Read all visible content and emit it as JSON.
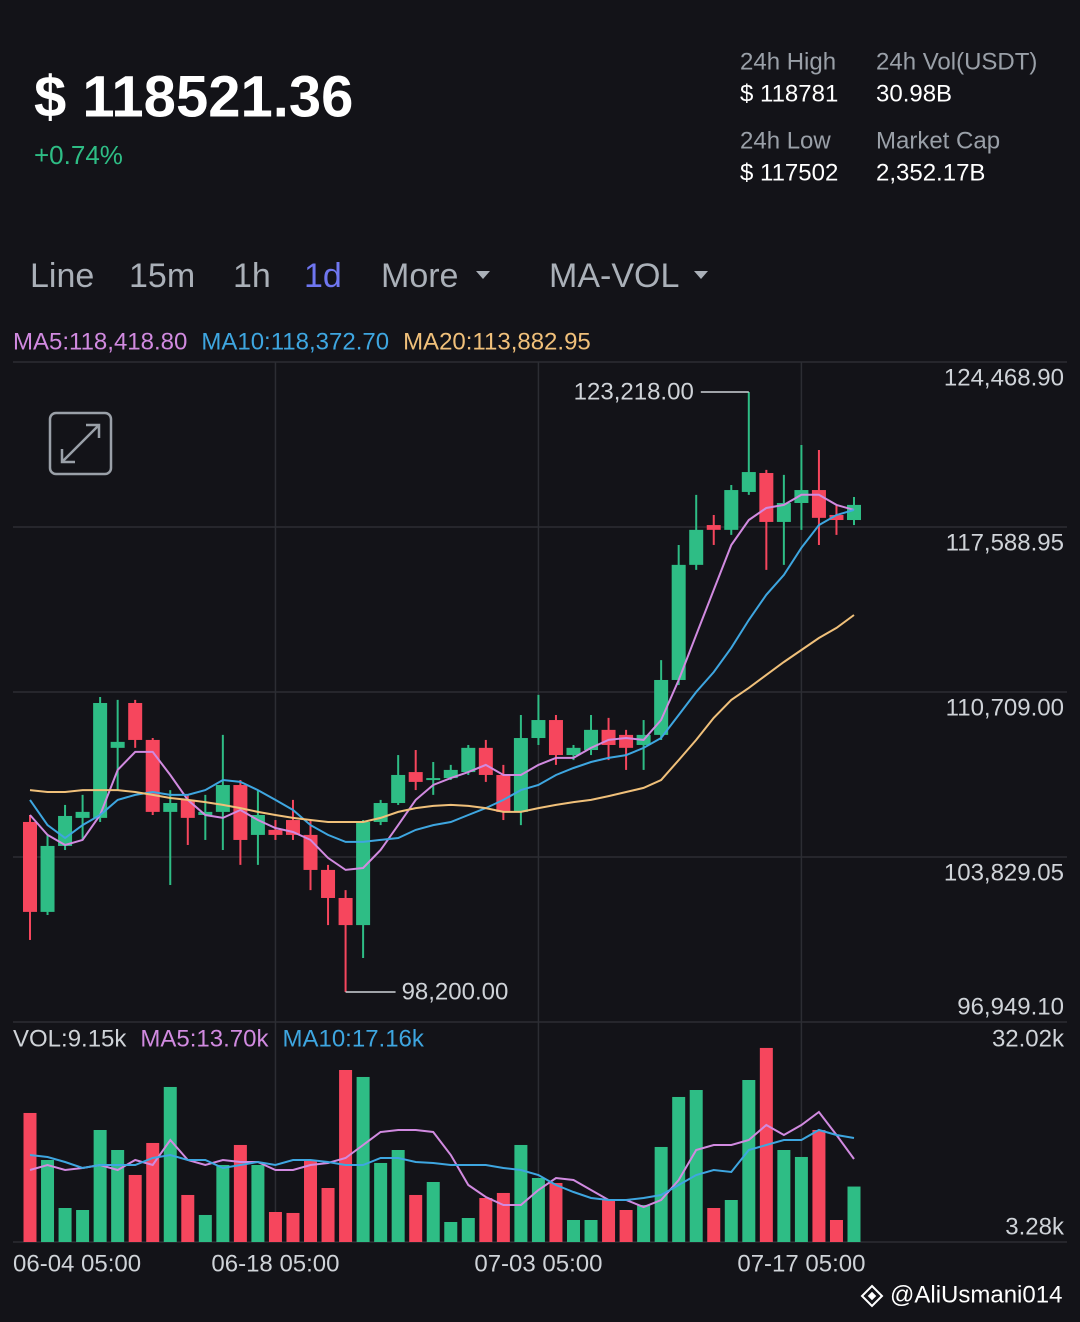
{
  "header": {
    "price": "$ 118521.36",
    "change": "+0.74%",
    "stats": [
      {
        "label": "24h High",
        "value": "$ 118781"
      },
      {
        "label": "24h Vol(USDT)",
        "value": "30.98B"
      },
      {
        "label": "24h Low",
        "value": "$ 117502"
      },
      {
        "label": "Market Cap",
        "value": "2,352.17B"
      }
    ]
  },
  "tabs": [
    {
      "label": "Line"
    },
    {
      "label": "15m"
    },
    {
      "label": "1h"
    },
    {
      "label": "1d",
      "active": true
    },
    {
      "label": "More"
    },
    {
      "label": "MA-VOL"
    }
  ],
  "watermark": "@AliUsmani014",
  "chart_data": [
    {
      "type": "candlestick",
      "categories": [
        "06-04 05:00",
        null,
        null,
        null,
        null,
        null,
        null,
        null,
        null,
        null,
        null,
        null,
        null,
        null,
        "06-18 05:00",
        null,
        null,
        null,
        null,
        null,
        null,
        null,
        null,
        null,
        null,
        null,
        null,
        null,
        null,
        "07-03 05:00",
        null,
        null,
        null,
        null,
        null,
        null,
        null,
        null,
        null,
        null,
        null,
        null,
        null,
        null,
        "07-17 05:00",
        null,
        null,
        null
      ],
      "open": [
        105290,
        101540,
        104290,
        105460,
        105460,
        108380,
        110250,
        108710,
        105710,
        106210,
        105580,
        105710,
        106830,
        104750,
        104960,
        105370,
        104750,
        103290,
        102120,
        100990,
        105290,
        106080,
        107370,
        107040,
        107120,
        107370,
        108380,
        107250,
        105710,
        108790,
        109540,
        108080,
        108290,
        109130,
        108920,
        108500,
        108920,
        111210,
        116010,
        117670,
        117470,
        119050,
        119840,
        117800,
        118590,
        119130,
        118090,
        117880
      ],
      "high": [
        105580,
        104750,
        106000,
        106420,
        110500,
        110380,
        110380,
        108790,
        106620,
        106420,
        106420,
        108920,
        107040,
        106620,
        105370,
        106210,
        105370,
        103500,
        102450,
        105370,
        106210,
        108080,
        108290,
        107790,
        107670,
        108500,
        108710,
        107670,
        109750,
        110590,
        109750,
        108500,
        109750,
        109630,
        109130,
        109540,
        112040,
        116840,
        118930,
        118090,
        119340,
        123218,
        119970,
        119760,
        121010,
        120800,
        118510,
        118840
      ],
      "low": [
        100370,
        101410,
        104120,
        104540,
        105290,
        106620,
        108380,
        105580,
        102660,
        104330,
        104540,
        104120,
        103500,
        103500,
        104540,
        104540,
        102450,
        100990,
        98200,
        99620,
        105160,
        106000,
        106620,
        106420,
        107040,
        107250,
        106960,
        105370,
        105160,
        108500,
        107670,
        107870,
        108080,
        107870,
        107460,
        107460,
        108710,
        111000,
        115800,
        116840,
        117260,
        118930,
        115800,
        116010,
        117470,
        116840,
        117260,
        117670
      ],
      "close": [
        101540,
        104290,
        105540,
        105710,
        110250,
        108630,
        108710,
        105710,
        106080,
        105460,
        105710,
        106830,
        104540,
        105580,
        104750,
        104750,
        103290,
        102120,
        100990,
        105290,
        106080,
        107250,
        106960,
        107120,
        107460,
        108380,
        107250,
        105710,
        108790,
        109540,
        108080,
        108380,
        109130,
        108500,
        108380,
        108920,
        111210,
        116010,
        117470,
        117470,
        119130,
        119880,
        117800,
        118590,
        119130,
        117970,
        117880,
        118510
      ],
      "up_color": "#2ebd85",
      "down_color": "#f6465d",
      "high_label": "123,218.00",
      "low_label": "98,200.00",
      "ylim": [
        96949.1,
        124468.9
      ],
      "yticks": [
        {
          "value": 124468.9,
          "label": "124,468.90"
        },
        {
          "value": 117588.95,
          "label": "117,588.95"
        },
        {
          "value": 110709,
          "label": "110,709.00"
        },
        {
          "value": 103829.05,
          "label": "103,829.05"
        },
        {
          "value": 96949.1,
          "label": "96,949.10"
        }
      ],
      "grid": true,
      "series": [
        {
          "name": "MA5:118,418.80",
          "color": "#d18ae0",
          "values": [
            105580,
            104750,
            104330,
            104540,
            105580,
            107460,
            108210,
            108210,
            107250,
            106210,
            105580,
            105460,
            105790,
            105370,
            105040,
            104870,
            104540,
            103790,
            103290,
            103370,
            104120,
            105160,
            106210,
            106830,
            107120,
            107370,
            107670,
            107250,
            107250,
            107670,
            107960,
            107960,
            108380,
            108710,
            108790,
            108710,
            109540,
            111210,
            113090,
            114960,
            116840,
            117880,
            118380,
            118510,
            118930,
            118930,
            118510,
            118300
          ]
        },
        {
          "name": "MA10:118,372.70",
          "color": "#3ea6e0",
          "values": [
            106210,
            105160,
            104620,
            105160,
            105580,
            106210,
            106420,
            106540,
            106420,
            106420,
            106620,
            107040,
            106960,
            106620,
            106210,
            105790,
            105160,
            104750,
            104460,
            104460,
            104540,
            104620,
            104960,
            105160,
            105290,
            105580,
            105870,
            106210,
            106620,
            106830,
            107250,
            107540,
            107790,
            107960,
            108080,
            108380,
            108790,
            109750,
            110710,
            111540,
            112550,
            113710,
            114760,
            115590,
            116720,
            117670,
            118090,
            118300
          ]
        },
        {
          "name": "MA20:113,882.95",
          "color": "#f0c07a",
          "values": [
            106620,
            106540,
            106540,
            106620,
            106620,
            106620,
            106540,
            106420,
            106290,
            106210,
            106120,
            106000,
            105870,
            105710,
            105580,
            105460,
            105370,
            105290,
            105290,
            105290,
            105460,
            105710,
            105870,
            105960,
            106000,
            105960,
            105870,
            105710,
            105710,
            105870,
            106000,
            106120,
            106210,
            106370,
            106540,
            106710,
            107040,
            107870,
            108710,
            109630,
            110380,
            110880,
            111420,
            111960,
            112460,
            112960,
            113380,
            113920
          ]
        }
      ]
    },
    {
      "type": "bar",
      "name": "VOL:9.15k",
      "values": [
        21290,
        13530,
        5610,
        5280,
        18480,
        15180,
        11060,
        16340,
        25580,
        7760,
        4460,
        12710,
        16010,
        12710,
        4950,
        4790,
        13530,
        8910,
        28380,
        27230,
        13040,
        15180,
        7760,
        9900,
        3300,
        3960,
        7260,
        8090,
        16010,
        10560,
        9740,
        3630,
        3630,
        6930,
        5280,
        6110,
        15680,
        23930,
        25080,
        5610,
        6930,
        26730,
        32020,
        15180,
        14030,
        18480,
        3630,
        9150
      ],
      "ylim": [
        0,
        36300
      ],
      "yticks": [
        {
          "value": 32020,
          "label": "32.02k"
        },
        {
          "value": 3280,
          "label": "3.28k"
        }
      ],
      "series": [
        {
          "name": "MA5:13.70k",
          "color": "#d18ae0",
          "values": [
            11880,
            12710,
            11880,
            12210,
            12710,
            11880,
            13530,
            12710,
            16830,
            13530,
            12710,
            13530,
            13200,
            13200,
            11880,
            11880,
            12710,
            13040,
            13860,
            16010,
            18150,
            18480,
            18480,
            18150,
            14360,
            9410,
            7430,
            6110,
            6110,
            8580,
            10560,
            10230,
            8580,
            6930,
            6930,
            5780,
            6930,
            10230,
            15180,
            16010,
            16010,
            16830,
            19310,
            17660,
            19310,
            21450,
            17660,
            13700
          ]
        },
        {
          "name": "MA10:17.16k",
          "color": "#3ea6e0",
          "values": [
            14360,
            14030,
            13200,
            12210,
            12710,
            12710,
            12710,
            13860,
            14360,
            13530,
            13530,
            12210,
            12710,
            13200,
            12710,
            13530,
            13530,
            13200,
            12710,
            12710,
            13860,
            13860,
            13200,
            13040,
            12710,
            12710,
            12710,
            12210,
            11880,
            11060,
            9410,
            8250,
            7260,
            6930,
            6930,
            7260,
            7760,
            9410,
            11060,
            11880,
            11550,
            15180,
            16010,
            16830,
            16830,
            18480,
            17660,
            17160
          ]
        }
      ]
    }
  ]
}
